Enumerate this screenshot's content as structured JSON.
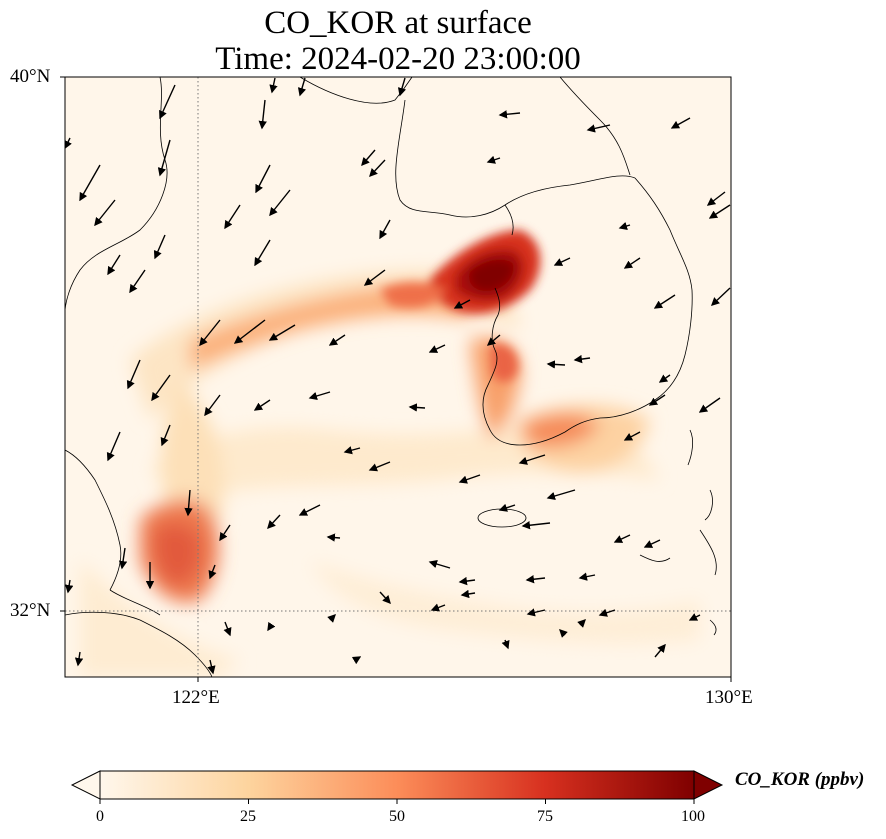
{
  "title_line1": "CO_KOR at surface",
  "title_line2": "Time: 2024-02-20 23:00:00",
  "lat_labels": [
    "40°N",
    "32°N"
  ],
  "lon_labels": [
    "122°E",
    "130°E"
  ],
  "colorbar": {
    "label": "CO_KOR (ppbv)",
    "ticks": [
      "0",
      "25",
      "50",
      "75",
      "100"
    ],
    "range": [
      0,
      100
    ],
    "colormap": "OrRd",
    "colors": [
      "#fff7ec",
      "#fdd49e",
      "#fc8d59",
      "#d7301f",
      "#7f0000"
    ]
  },
  "map": {
    "lon_range": [
      120,
      130
    ],
    "lat_range": [
      31,
      40
    ],
    "gridlines": {
      "lon": [
        122
      ],
      "lat": [
        32
      ]
    },
    "hotspots": [
      {
        "name": "Seoul metropolitan area",
        "lon": 126.8,
        "lat": 37.5,
        "value": 100
      },
      {
        "name": "Shanghai area",
        "lon": 121.6,
        "lat": 32.8,
        "value": 65
      },
      {
        "name": "Korean southwest coast",
        "lon": 126.8,
        "lat": 35.0,
        "value": 55
      }
    ]
  }
}
